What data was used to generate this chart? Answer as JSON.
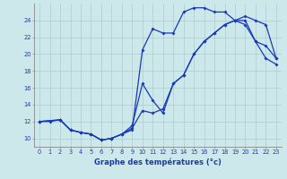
{
  "title": "Graphe des températures (°c)",
  "background_color": "#cce8ea",
  "grid_color": "#aacccc",
  "line_color": "#1a3ab5",
  "xlim": [
    -0.5,
    23.5
  ],
  "ylim": [
    9.0,
    26.0
  ],
  "xticks": [
    0,
    1,
    2,
    3,
    4,
    5,
    6,
    7,
    8,
    9,
    10,
    11,
    12,
    13,
    14,
    15,
    16,
    17,
    18,
    19,
    20,
    21,
    22,
    23
  ],
  "yticks": [
    10,
    12,
    14,
    16,
    18,
    20,
    22,
    24
  ],
  "line1_x": [
    0,
    1,
    2,
    3,
    4,
    5,
    6,
    7,
    8,
    9,
    10,
    11,
    12,
    13,
    14,
    15,
    16,
    17,
    18,
    19,
    20,
    21,
    22,
    23
  ],
  "line1_y": [
    12.0,
    12.0,
    12.2,
    11.0,
    10.7,
    10.5,
    9.8,
    10.0,
    10.5,
    11.2,
    13.3,
    13.0,
    13.5,
    16.5,
    17.5,
    20.0,
    21.5,
    22.5,
    23.5,
    24.0,
    24.5,
    24.0,
    23.5,
    19.5
  ],
  "line2_x": [
    0,
    2,
    3,
    4,
    5,
    6,
    7,
    8,
    9,
    10,
    11,
    12,
    13,
    14,
    15,
    16,
    17,
    18,
    19,
    20,
    21,
    22,
    23
  ],
  "line2_y": [
    12.0,
    12.2,
    11.0,
    10.7,
    10.5,
    9.8,
    10.0,
    10.5,
    11.0,
    20.5,
    23.0,
    22.5,
    22.5,
    25.0,
    25.5,
    25.5,
    25.0,
    25.0,
    24.0,
    23.5,
    21.5,
    19.5,
    18.8
  ],
  "line3_x": [
    0,
    2,
    3,
    4,
    5,
    6,
    7,
    8,
    9,
    10,
    11,
    12,
    13,
    14,
    15,
    16,
    17,
    18,
    19,
    20,
    21,
    22,
    23
  ],
  "line3_y": [
    12.0,
    12.2,
    11.0,
    10.7,
    10.5,
    9.8,
    10.0,
    10.5,
    11.5,
    16.5,
    14.5,
    13.0,
    16.5,
    17.5,
    20.0,
    21.5,
    22.5,
    23.5,
    24.0,
    24.0,
    21.5,
    21.0,
    19.5
  ]
}
